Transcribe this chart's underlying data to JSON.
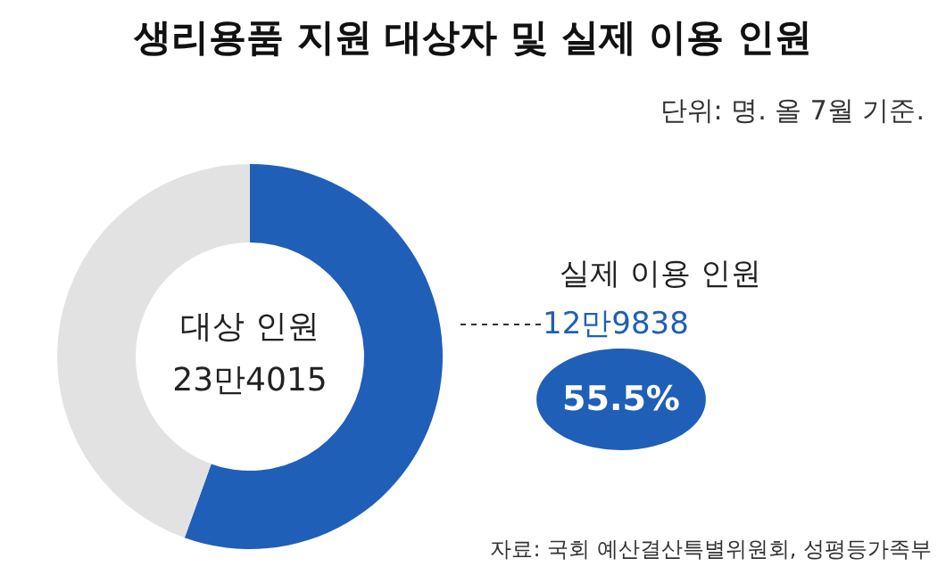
{
  "chart_data": {
    "type": "donut",
    "title": "생리용품 지원 대상자 및 실제 이용 인원",
    "subtitle": "단위: 명. 올 7월 기준.",
    "categories": [
      "실제 이용 인원",
      null
    ],
    "values": [
      55.5,
      44.5
    ],
    "colors": [
      "#1f5fb8",
      "#e2e2e2"
    ],
    "value_labels": [
      "55.5%",
      null
    ],
    "annotations": [
      "대상 인원",
      "23만4015",
      "12만9838",
      "자료: 국회 예산결산특별위원회, 성평등가족부"
    ]
  }
}
